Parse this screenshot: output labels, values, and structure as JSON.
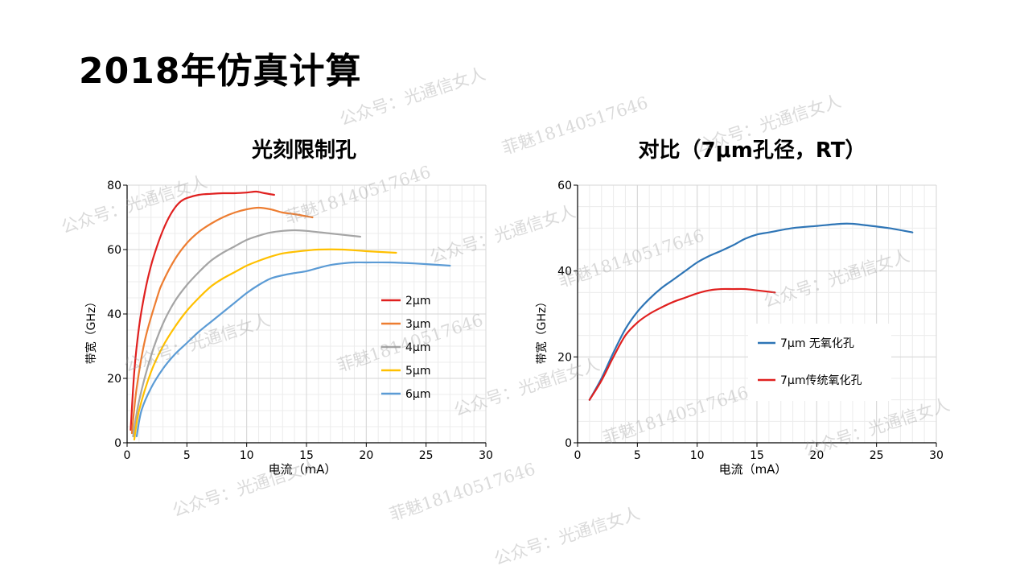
{
  "page": {
    "title": "2018年仿真计算"
  },
  "watermark": {
    "account": "公众号：光通信女人",
    "contact": "菲魅18140517646"
  },
  "chart_data": [
    {
      "type": "line",
      "title": "光刻限制孔",
      "xlabel": "电流（mA）",
      "ylabel": "带宽（GHz）",
      "xlim": [
        0,
        30
      ],
      "ylim": [
        0,
        80
      ],
      "xticks": [
        0,
        5,
        10,
        15,
        20,
        25,
        30
      ],
      "yticks": [
        0,
        20,
        40,
        60,
        80
      ],
      "grid": true,
      "legend_position": "right",
      "series": [
        {
          "name": "2μm",
          "color": "#e0201f",
          "x": [
            0.3,
            0.6,
            1,
            1.5,
            2,
            2.5,
            3,
            3.5,
            4,
            4.5,
            5,
            6,
            7,
            8,
            9,
            10,
            10.8,
            11.5,
            12.3
          ],
          "y": [
            4,
            22,
            36,
            47,
            55,
            61,
            66,
            70,
            73,
            75,
            76,
            77,
            77.3,
            77.5,
            77.5,
            77.7,
            78,
            77.5,
            77
          ]
        },
        {
          "name": "3μm",
          "color": "#ed7d31",
          "x": [
            0.4,
            0.8,
            1.5,
            2.5,
            3,
            4,
            5,
            6,
            7,
            8,
            9,
            10,
            11,
            12,
            13,
            14,
            15.5
          ],
          "y": [
            3,
            17,
            32,
            45,
            50,
            57,
            62,
            65.5,
            68,
            70,
            71.5,
            72.5,
            73,
            72.5,
            71.5,
            71,
            70
          ]
        },
        {
          "name": "4μm",
          "color": "#a5a5a5",
          "x": [
            0.5,
            1,
            2,
            3,
            4,
            5,
            6,
            7,
            8,
            9,
            10,
            11,
            12,
            13,
            14,
            15,
            17,
            19.5
          ],
          "y": [
            2,
            13,
            27,
            37,
            44,
            49,
            53,
            56.5,
            59,
            61,
            63,
            64.3,
            65.3,
            65.8,
            66,
            65.8,
            65,
            64
          ]
        },
        {
          "name": "5μm",
          "color": "#ffc000",
          "x": [
            0.6,
            1,
            2,
            3,
            4,
            5,
            6,
            7,
            8,
            9,
            10,
            11,
            12,
            13,
            14,
            15,
            16,
            18,
            20,
            22.5
          ],
          "y": [
            1,
            10,
            22,
            30,
            36,
            41,
            45,
            48.5,
            51,
            53,
            55,
            56.5,
            57.8,
            58.8,
            59.3,
            59.7,
            60,
            60,
            59.5,
            59
          ]
        },
        {
          "name": "6μm",
          "color": "#5b9bd5",
          "x": [
            0.8,
            1.2,
            2,
            3,
            4,
            5,
            6,
            7,
            8,
            9,
            10,
            11,
            12,
            13,
            14,
            15,
            16,
            17,
            18,
            19,
            20,
            22,
            24,
            27
          ],
          "y": [
            2,
            10,
            17,
            23,
            27.5,
            31,
            34.5,
            37.5,
            40.5,
            43.5,
            46.5,
            49,
            51,
            52,
            52.7,
            53.3,
            54.3,
            55.2,
            55.7,
            56,
            56,
            56,
            55.7,
            55
          ]
        }
      ]
    },
    {
      "type": "line",
      "title": "对比（7μm孔径，RT）",
      "xlabel": "电流（mA）",
      "ylabel": "带宽（GHz）",
      "xlim": [
        0,
        30
      ],
      "ylim": [
        0,
        60
      ],
      "xticks": [
        0,
        5,
        10,
        15,
        20,
        25,
        30
      ],
      "yticks": [
        0,
        20,
        40,
        60
      ],
      "grid": true,
      "legend_position": "center-right",
      "series": [
        {
          "name": "7μm 无氧化孔",
          "color": "#2e75b6",
          "x": [
            1,
            2,
            3,
            4,
            5,
            6,
            7,
            8,
            9,
            10,
            11,
            12,
            13,
            14,
            15,
            16,
            18,
            20,
            22,
            23,
            24,
            26,
            28
          ],
          "y": [
            10,
            15,
            21,
            26.5,
            30.5,
            33.5,
            36,
            38,
            40,
            42,
            43.5,
            44.7,
            46,
            47.5,
            48.5,
            49,
            50,
            50.5,
            51,
            51,
            50.7,
            50,
            49
          ]
        },
        {
          "name": "7μm传统氧化孔",
          "color": "#e0201f",
          "x": [
            1,
            2,
            3,
            4,
            5,
            6,
            7,
            8,
            9,
            10,
            11,
            12,
            13,
            14,
            15,
            16.5
          ],
          "y": [
            10,
            14.5,
            20,
            25,
            28,
            30,
            31.5,
            32.8,
            33.8,
            34.8,
            35.5,
            35.8,
            35.8,
            35.8,
            35.5,
            35
          ]
        }
      ]
    }
  ]
}
